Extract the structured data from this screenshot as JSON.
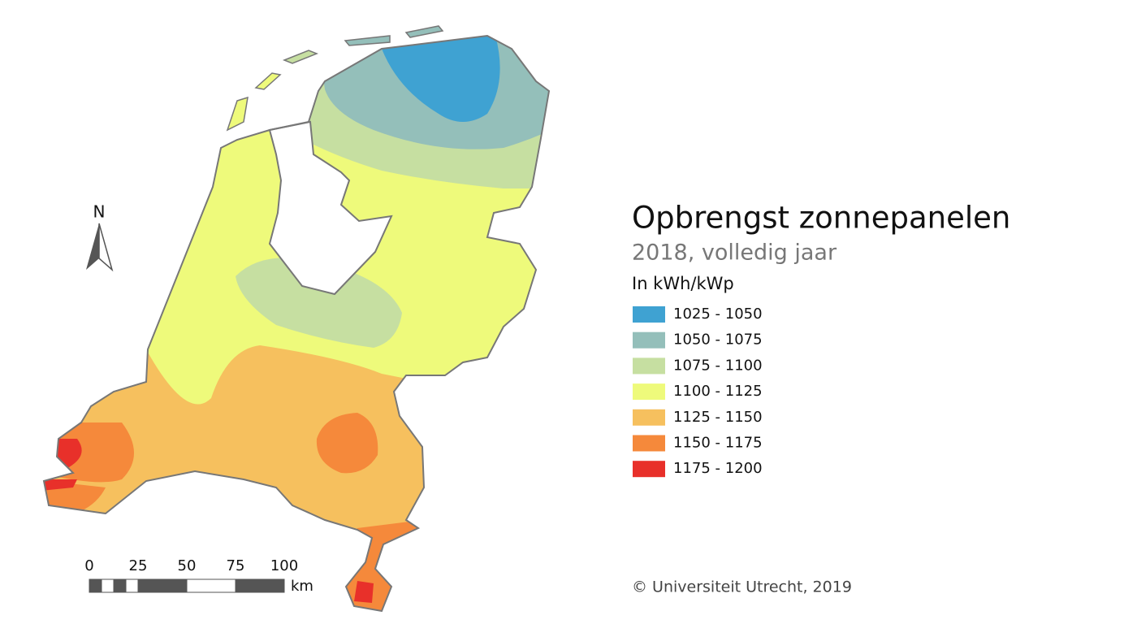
{
  "title": "Opbrengst zonnepanelen",
  "subtitle": "2018, volledig jaar",
  "unit": "In kWh/kWp",
  "legend": [
    {
      "label": "1025 - 1050",
      "color": "#3fa2d2"
    },
    {
      "label": "1050 - 1075",
      "color": "#94bfba"
    },
    {
      "label": "1075 - 1100",
      "color": "#c6dfa1"
    },
    {
      "label": "1100 - 1125",
      "color": "#eefa7b"
    },
    {
      "label": "1125 - 1150",
      "color": "#f6c05e"
    },
    {
      "label": "1150 - 1175",
      "color": "#f5893b"
    },
    {
      "label": "1175 - 1200",
      "color": "#e8302a"
    }
  ],
  "north": "N",
  "scale": {
    "ticks": [
      0,
      25,
      50,
      75,
      100
    ],
    "unit": "km"
  },
  "credit": "© Universiteit Utrecht, 2019"
}
